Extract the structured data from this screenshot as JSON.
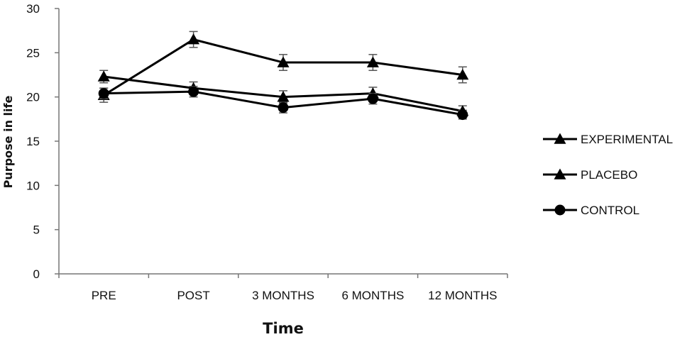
{
  "chart_data": {
    "type": "line",
    "xlabel": "Time",
    "ylabel": "Purpose in life",
    "categories": [
      "PRE",
      "POST",
      "3 MONTHS",
      "6 MONTHS",
      "12 MONTHS"
    ],
    "ylim": [
      0,
      30
    ],
    "yticks": [
      0,
      5,
      10,
      15,
      20,
      25,
      30
    ],
    "grid": false,
    "legend_position": "right",
    "series": [
      {
        "name": "EXPERIMENTAL",
        "marker": "triangle",
        "values": [
          20.2,
          26.5,
          23.9,
          23.9,
          22.5
        ],
        "errors": [
          0.8,
          0.9,
          0.9,
          0.9,
          0.9
        ]
      },
      {
        "name": "PLACEBO",
        "marker": "triangle",
        "values": [
          22.3,
          21.0,
          20.0,
          20.4,
          18.4
        ],
        "errors": [
          0.7,
          0.7,
          0.7,
          0.7,
          0.6
        ]
      },
      {
        "name": "CONTROL",
        "marker": "circle",
        "values": [
          20.4,
          20.6,
          18.8,
          19.8,
          18.0
        ],
        "errors": [
          0.6,
          0.6,
          0.6,
          0.6,
          0.5
        ]
      }
    ]
  }
}
